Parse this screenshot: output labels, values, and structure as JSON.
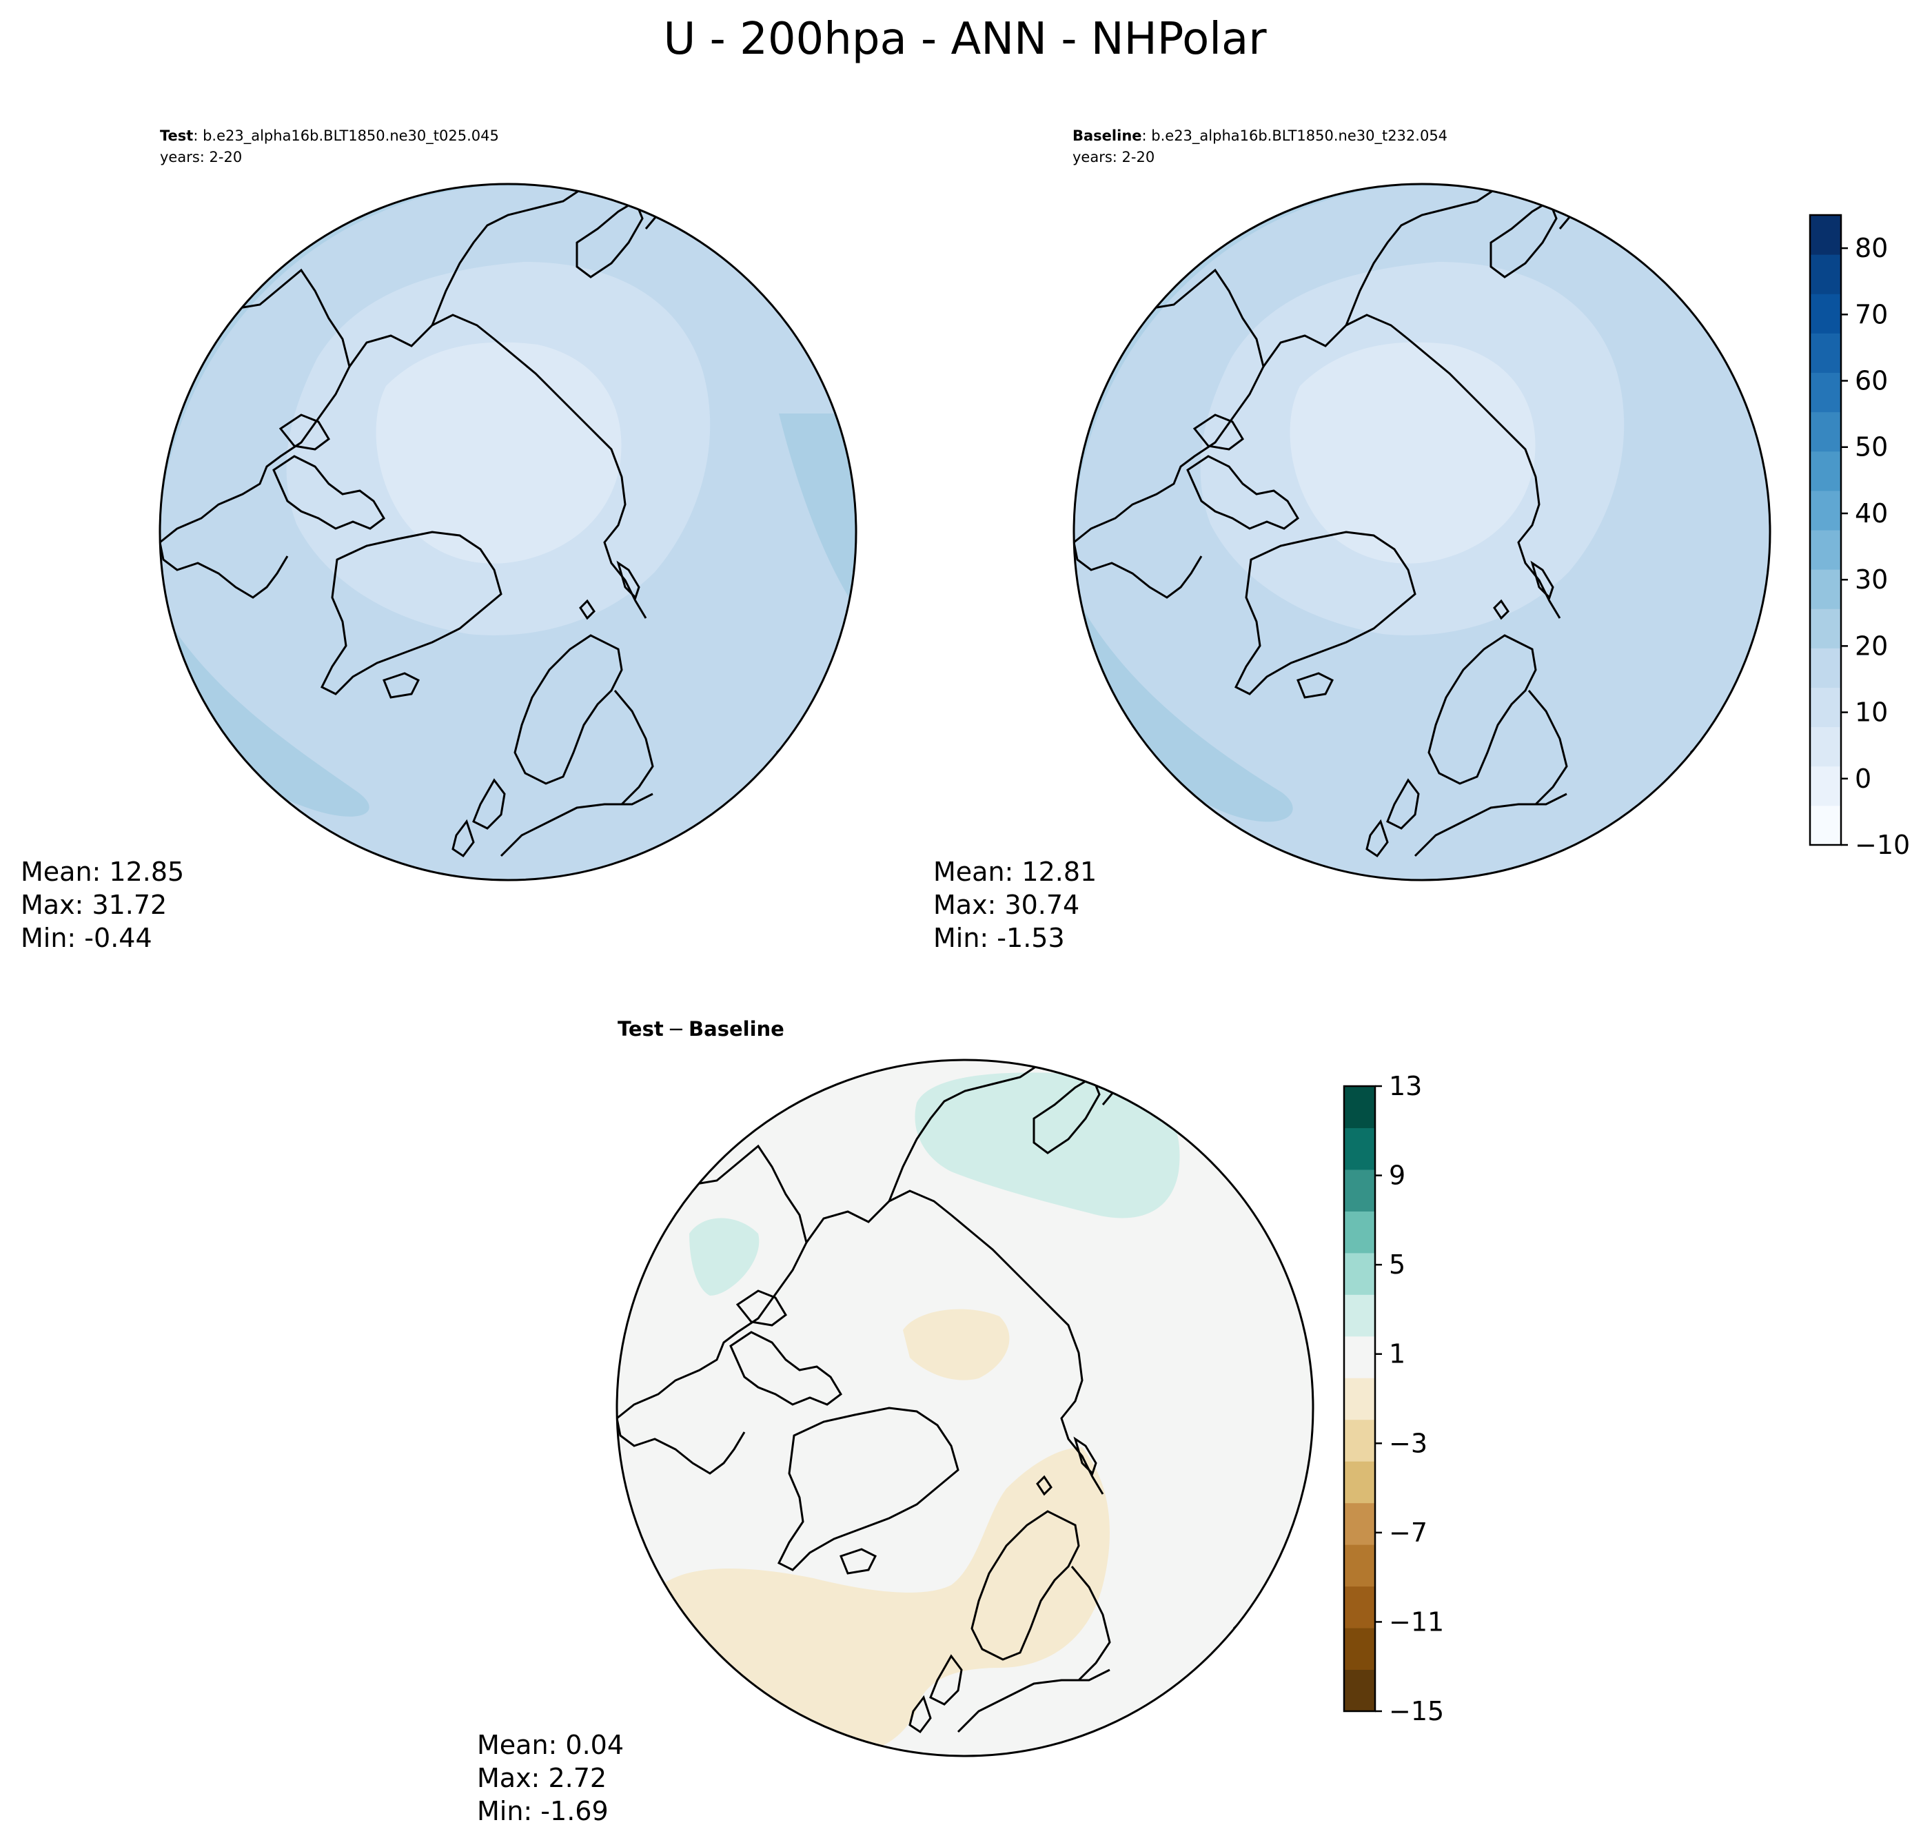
{
  "title": "U - 200hpa - ANN - NHPolar",
  "panels": {
    "test": {
      "label_bold": "Test",
      "label_rest": ": b.e23_alpha16b.BLT1850.ne30_t025.045",
      "years": "years: 2-20",
      "stats": {
        "mean": "Mean: 12.85",
        "max": "Max: 31.72",
        "min": "Min: -0.44"
      }
    },
    "baseline": {
      "label_bold": "Baseline",
      "label_rest": ": b.e23_alpha16b.BLT1850.ne30_t232.054",
      "years": "years: 2-20",
      "stats": {
        "mean": "Mean: 12.81",
        "max": "Max: 30.74",
        "min": "Min: -1.53"
      }
    },
    "diff": {
      "label_a": "Test",
      "label_sep": "−",
      "label_b": "Baseline",
      "stats": {
        "mean": "Mean:  0.04",
        "max": "Max:  2.72",
        "min": "Min: -1.69"
      }
    }
  },
  "colorbars": {
    "main": {
      "range": [
        -10,
        85
      ],
      "tick_labels": [
        "−10",
        "0",
        "10",
        "20",
        "30",
        "40",
        "50",
        "60",
        "70",
        "80"
      ],
      "colors": [
        "#f7fbff",
        "#eaf2fb",
        "#dce9f6",
        "#cfe1f2",
        "#c1d9ed",
        "#abcfe5",
        "#94c4df",
        "#7ab6d9",
        "#60a7d2",
        "#4a98c9",
        "#3787c0",
        "#2575b7",
        "#1764ab",
        "#0a539e",
        "#08458a",
        "#08306b"
      ]
    },
    "diff": {
      "range": [
        -15,
        13
      ],
      "tick_labels": [
        "−15",
        "−11",
        "−7",
        "−3",
        "1",
        "5",
        "9",
        "13"
      ],
      "colors": [
        "#5e3a0c",
        "#7e4b0b",
        "#9b5e18",
        "#b3782e",
        "#c7914c",
        "#dbbb74",
        "#ecd6a3",
        "#f5ead0",
        "#f4f5f4",
        "#d1ede8",
        "#a0dad1",
        "#6bbfb3",
        "#369288",
        "#0b7167",
        "#024f44"
      ]
    }
  },
  "map_colors": {
    "test": [
      "#abcfe5",
      "#c1d9ed",
      "#cfe1f2",
      "#dce9f6"
    ],
    "diff": {
      "background": "#f4f5f4",
      "positive": "#d1ede8",
      "negative": "#f5ead0"
    }
  }
}
